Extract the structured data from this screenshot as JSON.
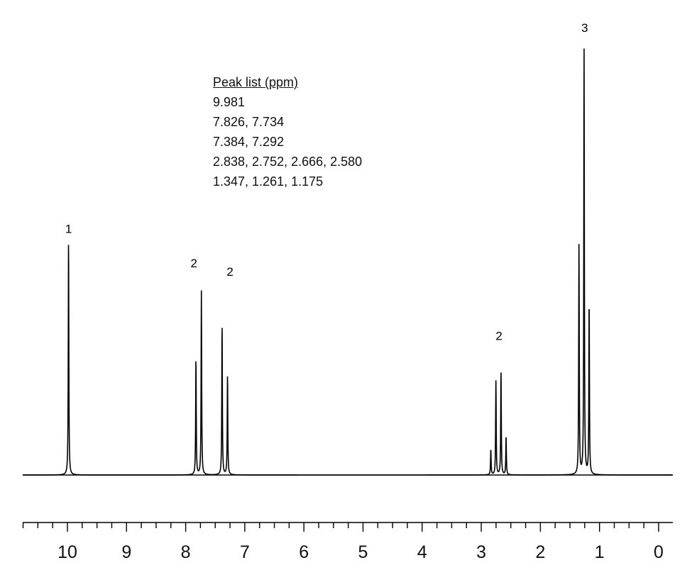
{
  "chart_data": {
    "type": "line",
    "title": "",
    "xlabel": "",
    "ylabel": "",
    "xlim": [
      10.75,
      -0.15
    ],
    "x_reversed": true,
    "x_ticks": [
      "10",
      "9",
      "8",
      "7",
      "6",
      "5",
      "4",
      "3",
      "2",
      "1",
      "0"
    ],
    "x_tick_values": [
      10,
      9,
      8,
      7,
      6,
      5,
      4,
      3,
      2,
      1,
      0
    ],
    "minor_tick_step": 0.25,
    "grid": false,
    "peak_list": {
      "title": "Peak list (ppm)",
      "lines": [
        "9.981",
        "7.826, 7.734",
        "7.384, 7.292",
        "2.838, 2.752, 2.666, 2.580",
        "1.347, 1.261, 1.175"
      ]
    },
    "peaks": [
      {
        "ppm": 9.981,
        "height": 0.555
      },
      {
        "ppm": 7.826,
        "height": 0.275
      },
      {
        "ppm": 7.734,
        "height": 0.43
      },
      {
        "ppm": 7.384,
        "height": 0.355
      },
      {
        "ppm": 7.292,
        "height": 0.235
      },
      {
        "ppm": 2.838,
        "height": 0.06
      },
      {
        "ppm": 2.752,
        "height": 0.22
      },
      {
        "ppm": 2.666,
        "height": 0.245
      },
      {
        "ppm": 2.58,
        "height": 0.09
      },
      {
        "ppm": 1.347,
        "height": 0.54
      },
      {
        "ppm": 1.261,
        "height": 1.0
      },
      {
        "ppm": 1.175,
        "height": 0.41
      }
    ],
    "integration_labels": [
      {
        "text": "1",
        "ppm": 9.98,
        "height": 0.565
      },
      {
        "text": "2",
        "ppm": 7.86,
        "height": 0.485
      },
      {
        "text": "2",
        "ppm": 7.25,
        "height": 0.465
      },
      {
        "text": "2",
        "ppm": 2.7,
        "height": 0.315
      },
      {
        "text": "3",
        "ppm": 1.25,
        "height": 1.035
      }
    ]
  }
}
